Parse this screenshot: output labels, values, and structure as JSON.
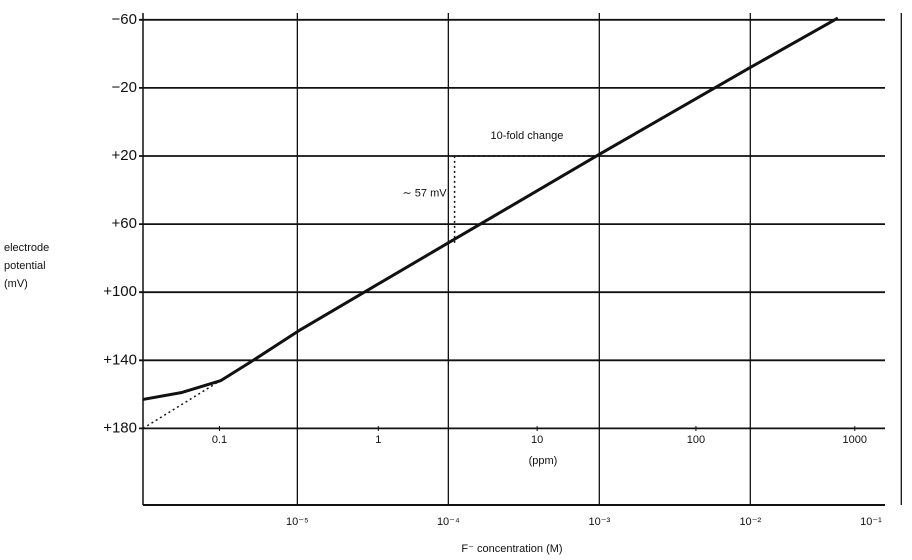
{
  "chart_data": {
    "type": "line",
    "ylabel": [
      "electrode",
      "potential",
      "(mV)"
    ],
    "xlabel": "F⁻ concentration (M)",
    "x2label": "(ppm)",
    "log_x": true,
    "y_inverted": true,
    "grid": true,
    "xlim": [
      9.5e-07,
      0.078
    ],
    "xticks": [
      {
        "value": 1e-05,
        "label": "10⁻⁵"
      },
      {
        "value": 0.0001,
        "label": "10⁻⁴"
      },
      {
        "value": 0.001,
        "label": "10⁻³"
      },
      {
        "value": 0.01,
        "label": "10⁻²"
      },
      {
        "value": 0.1,
        "label": "10⁻¹"
      }
    ],
    "x2lim": [
      0.033,
      1550
    ],
    "x2ticks": [
      0.1,
      1,
      10,
      100,
      1000
    ],
    "ylim": [
      -64,
      225
    ],
    "yticks": [
      {
        "value": -60,
        "label": "−60"
      },
      {
        "value": -20,
        "label": "−20"
      },
      {
        "value": 20,
        "label": "+20"
      },
      {
        "value": 60,
        "label": "+60"
      },
      {
        "value": 100,
        "label": "+100"
      },
      {
        "value": 140,
        "label": "+140"
      },
      {
        "value": 180,
        "label": "+180"
      }
    ],
    "series": [
      {
        "color": "#111111",
        "style": "solid",
        "x": [
          9.5e-07,
          1.7e-06,
          3.1e-06,
          4.9e-06,
          1.05e-05,
          0.0001,
          0.001,
          0.01,
          0.038
        ],
        "values": [
          163,
          159,
          152,
          141,
          122,
          71,
          19,
          -32,
          -61
        ]
      },
      {
        "color": "#111111",
        "style": "dotted",
        "x": [
          9.5e-07,
          4.9e-06
        ],
        "values": [
          180,
          141
        ]
      }
    ],
    "annotations": [
      {
        "text": "10-fold change",
        "x": 0.00011,
        "y": 13
      },
      {
        "text": "∼ 57 mV",
        "x": 0.00011,
        "y": 42
      }
    ],
    "bracket": {
      "x": [
        0.00011,
        0.001
      ],
      "y": [
        20,
        71
      ]
    }
  }
}
